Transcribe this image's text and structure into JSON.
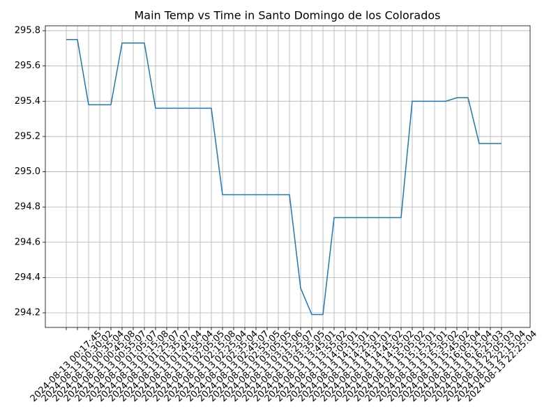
{
  "chart_data": {
    "type": "line",
    "title": "Main Temp vs Time in Santo Domingo de los Colorados",
    "categories": [
      "2024-08-13 00:17:45",
      "2024-08-13 00:30:02",
      "2024-08-13 00:35:04",
      "2024-08-13 00:45:08",
      "2024-08-13 00:55:07",
      "2024-08-13 01:05:07",
      "2024-08-13 01:15:08",
      "2024-08-13 01:25:07",
      "2024-08-13 01:35:07",
      "2024-08-13 01:45:04",
      "2024-08-13 01:55:04",
      "2024-08-13 02:05:05",
      "2024-08-13 02:15:08",
      "2024-08-13 02:25:04",
      "2024-08-13 02:35:04",
      "2024-08-13 02:45:07",
      "2024-08-13 02:55:05",
      "2024-08-13 03:05:05",
      "2024-08-13 03:15:06",
      "2024-08-13 03:25:07",
      "2024-08-13 03:35:05",
      "2024-08-13 13:45:01",
      "2024-08-13 13:55:02",
      "2024-08-13 14:05:01",
      "2024-08-13 14:15:01",
      "2024-08-13 14:25:01",
      "2024-08-13 14:35:01",
      "2024-08-13 14:45:02",
      "2024-08-13 14:55:02",
      "2024-08-13 15:05:02",
      "2024-08-13 15:15:01",
      "2024-08-13 15:25:01",
      "2024-08-13 15:35:02",
      "2024-08-13 15:45:02",
      "2024-08-13 16:05:04",
      "2024-08-13 16:15:04",
      "2024-08-13 16:25:03",
      "2024-08-13 22:05:03",
      "2024-08-13 22:15:04",
      "2024-08-13 22:25:04"
    ],
    "values": [
      295.75,
      295.75,
      295.38,
      295.38,
      295.38,
      295.73,
      295.73,
      295.73,
      295.36,
      295.36,
      295.36,
      295.36,
      295.36,
      295.36,
      294.87,
      294.87,
      294.87,
      294.87,
      294.87,
      294.87,
      294.87,
      294.34,
      294.19,
      294.19,
      294.74,
      294.74,
      294.74,
      294.74,
      294.74,
      294.74,
      294.74,
      295.4,
      295.4,
      295.4,
      295.4,
      295.42,
      295.42,
      295.16,
      295.16,
      295.16
    ],
    "color": "#1f77b4",
    "ylim": [
      294.117,
      295.828
    ],
    "yticks": [
      {
        "value": 294.2,
        "label": "294.2"
      },
      {
        "value": 294.4,
        "label": "294.4"
      },
      {
        "value": 294.6,
        "label": "294.6"
      },
      {
        "value": 294.8,
        "label": "294.8"
      },
      {
        "value": 295.0,
        "label": "295.0"
      },
      {
        "value": 295.2,
        "label": "295.2"
      },
      {
        "value": 295.4,
        "label": "295.4"
      },
      {
        "value": 295.6,
        "label": "295.6"
      },
      {
        "value": 295.8,
        "label": "295.8"
      }
    ],
    "grid": true
  }
}
